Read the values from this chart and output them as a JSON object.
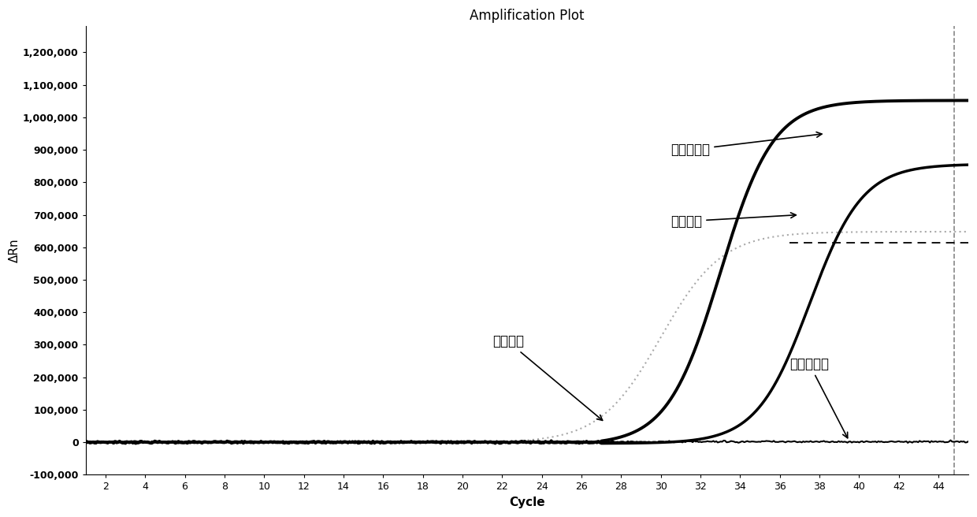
{
  "title": "Amplification Plot",
  "xlabel": "Cycle",
  "ylabel": "ΔRn",
  "xlim": [
    1,
    45.5
  ],
  "ylim": [
    -100000,
    1280000
  ],
  "xticks": [
    2,
    4,
    6,
    8,
    10,
    12,
    14,
    16,
    18,
    20,
    22,
    24,
    26,
    28,
    30,
    32,
    34,
    36,
    38,
    40,
    42,
    44
  ],
  "yticks": [
    -100000,
    0,
    100000,
    200000,
    300000,
    400000,
    500000,
    600000,
    700000,
    800000,
    900000,
    1000000,
    1100000,
    1200000
  ],
  "ytick_labels": [
    "-100,000",
    "0",
    "100,000",
    "200,000",
    "300,000",
    "400,000",
    "500,000",
    "600,000",
    "700,000",
    "800,000",
    "900,000",
    "1,000,000",
    "1,100,000",
    "1,200,000"
  ],
  "background_color": "#ffffff",
  "ann_pos_ctrl_text": "阳性质控品",
  "ann_clin_text": "临床样本",
  "ann_intern_text": "内标通道",
  "ann_neg_ctrl_text": "阴性质控品",
  "dashed_line_y": 615000,
  "dashed_line_x_start": 36.5,
  "dashed_line_x_end": 45.5,
  "vline_x": 44.8
}
